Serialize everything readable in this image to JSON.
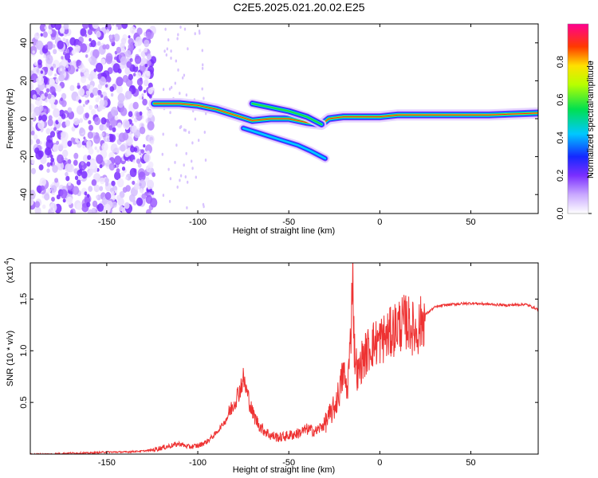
{
  "title": "C2E5.2025.021.20.02.E25",
  "chart_data": [
    {
      "type": "heatmap",
      "xlabel": "Height of straight line (km)",
      "ylabel": "Frequency (Hz)",
      "xlim": [
        -192,
        87
      ],
      "ylim": [
        -50,
        50
      ],
      "xticks": [
        -150,
        -100,
        -50,
        0,
        50
      ],
      "yticks": [
        -40,
        -20,
        0,
        20,
        40
      ],
      "colorbar": {
        "label": "Normalized spectral amplitude",
        "ticks": [
          0.0,
          0.2,
          0.4,
          0.6,
          0.8
        ],
        "range": [
          0,
          1
        ]
      },
      "features": {
        "noise_region_x": [
          -192,
          -124
        ],
        "main_track": [
          [
            -124,
            8
          ],
          [
            -110,
            8
          ],
          [
            -100,
            7
          ],
          [
            -90,
            5
          ],
          [
            -80,
            2
          ],
          [
            -70,
            -1
          ],
          [
            -60,
            0
          ],
          [
            -50,
            0
          ],
          [
            -40,
            -2
          ],
          [
            -32,
            -3
          ],
          [
            -28,
            0
          ],
          [
            -20,
            1
          ],
          [
            -10,
            1
          ],
          [
            0,
            1
          ],
          [
            10,
            2
          ],
          [
            30,
            2
          ],
          [
            60,
            2
          ],
          [
            87,
            3
          ]
        ],
        "upper_branch": [
          [
            -70,
            8
          ],
          [
            -60,
            6
          ],
          [
            -50,
            4
          ],
          [
            -40,
            1
          ],
          [
            -32,
            -3
          ]
        ],
        "lower_branch": [
          [
            -75,
            -5
          ],
          [
            -65,
            -8
          ],
          [
            -55,
            -11
          ],
          [
            -45,
            -14
          ],
          [
            -38,
            -17
          ],
          [
            -30,
            -21
          ]
        ]
      }
    },
    {
      "type": "line",
      "xlabel": "Height of straight line (km)",
      "ylabel": "SNR (10 * v/v)",
      "scale_label": "(x10",
      "scale_exp": "4",
      "xlim": [
        -192,
        87
      ],
      "ylim": [
        0,
        1.85
      ],
      "xticks": [
        -150,
        -100,
        -50,
        0,
        50
      ],
      "yticks": [
        0.5,
        1.0,
        1.5
      ],
      "color": "#ee3333",
      "x": [
        -192,
        -180,
        -170,
        -160,
        -150,
        -140,
        -130,
        -125,
        -120,
        -115,
        -110,
        -105,
        -100,
        -95,
        -90,
        -85,
        -80,
        -77,
        -75,
        -73,
        -70,
        -67,
        -65,
        -60,
        -55,
        -50,
        -45,
        -40,
        -35,
        -30,
        -25,
        -22,
        -20,
        -18,
        -16,
        -15,
        -14,
        -12,
        -10,
        -5,
        0,
        5,
        10,
        15,
        20,
        25,
        30,
        35,
        40,
        50,
        60,
        70,
        80,
        87
      ],
      "values": [
        0.0,
        0.0,
        0.01,
        0.01,
        0.02,
        0.02,
        0.03,
        0.04,
        0.06,
        0.08,
        0.1,
        0.07,
        0.08,
        0.12,
        0.2,
        0.32,
        0.5,
        0.62,
        0.73,
        0.6,
        0.4,
        0.3,
        0.25,
        0.18,
        0.16,
        0.18,
        0.2,
        0.24,
        0.22,
        0.3,
        0.45,
        0.62,
        0.8,
        0.6,
        1.1,
        1.85,
        1.0,
        0.75,
        0.9,
        1.05,
        1.1,
        1.15,
        1.25,
        1.28,
        1.18,
        1.35,
        1.42,
        1.44,
        1.45,
        1.46,
        1.45,
        1.44,
        1.45,
        1.4
      ]
    }
  ]
}
